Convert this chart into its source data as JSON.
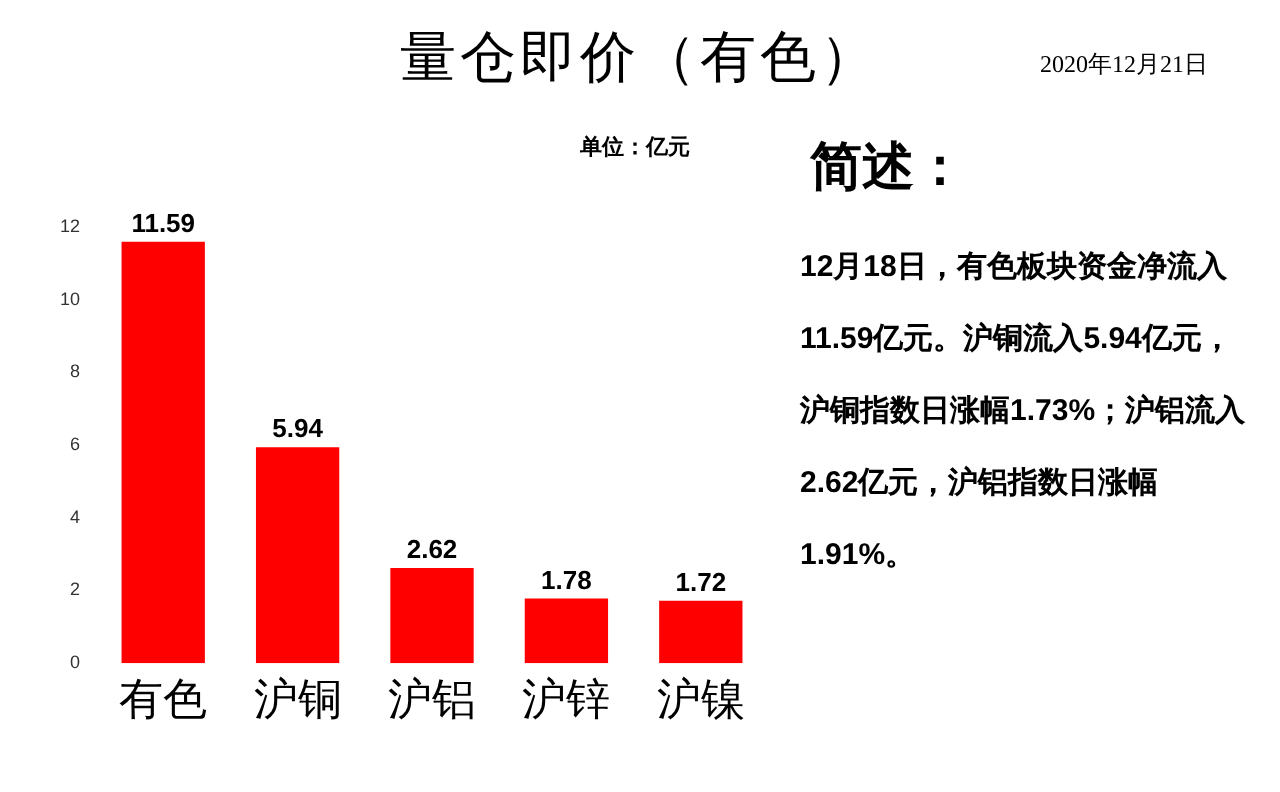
{
  "chart_data": {
    "type": "bar",
    "title": "量仓即价（有色）",
    "categories": [
      "有色",
      "沪铜",
      "沪铝",
      "沪锌",
      "沪镍"
    ],
    "values": [
      11.59,
      5.94,
      2.62,
      1.78,
      1.72
    ],
    "color": "#ff0000",
    "ylim": [
      0,
      12
    ],
    "yticks": [
      0,
      2,
      4,
      6,
      8,
      10,
      12
    ],
    "grid": false,
    "data_labels": true,
    "annotations": [
      "单位：亿元",
      "简述：",
      "12月18日，有色板块资金净流入11.59亿元。沪铜流入5.94亿元，沪铜指数日涨幅1.73%；沪铝流入2.62亿元，沪铝指数日涨幅1.91%。",
      "2020年12月21日"
    ]
  }
}
